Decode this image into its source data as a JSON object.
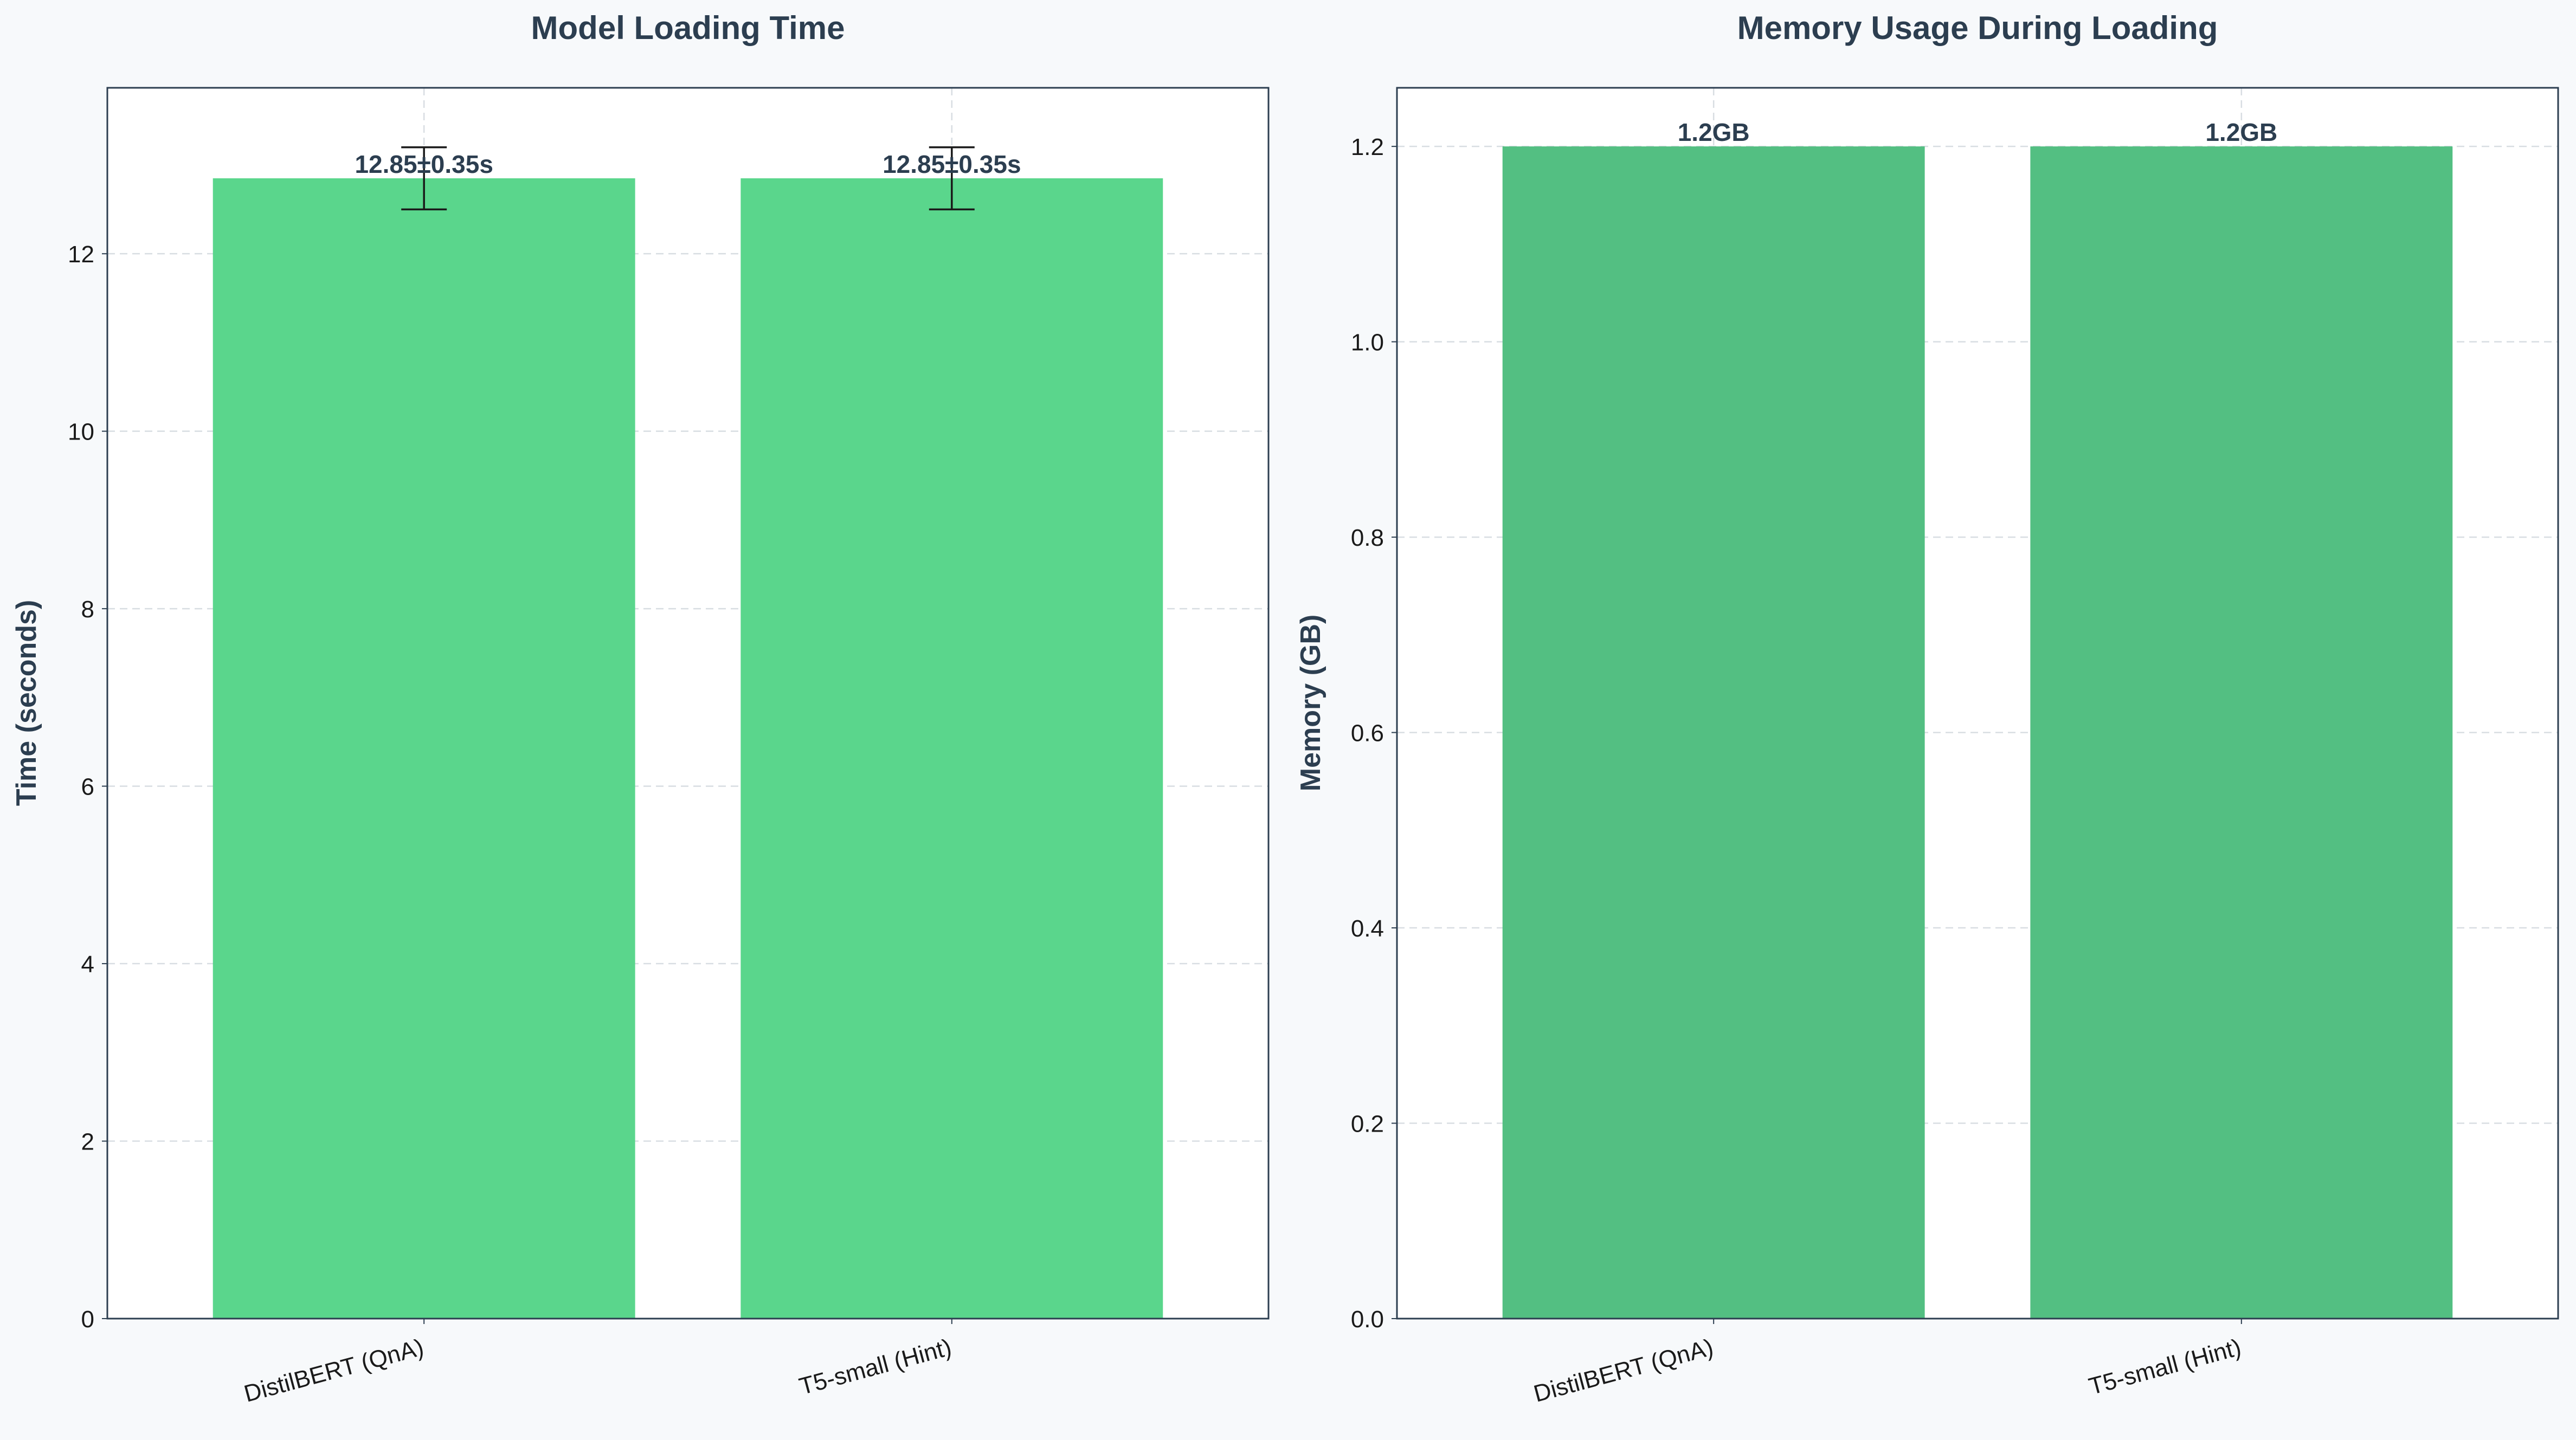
{
  "chart_data": [
    {
      "type": "bar",
      "title": "Model Loading Time",
      "xlabel": "",
      "ylabel": "Time (seconds)",
      "categories": [
        "DistilBERT (QnA)",
        "T5-small (Hint)"
      ],
      "values": [
        12.85,
        12.85
      ],
      "errors": [
        0.35,
        0.35
      ],
      "value_labels": [
        "12.85±0.35s",
        "12.85±0.35s"
      ],
      "ylim": [
        0,
        13.87
      ],
      "yticks": [
        0,
        2,
        4,
        6,
        8,
        10,
        12
      ],
      "ytick_labels": [
        "0",
        "2",
        "4",
        "6",
        "8",
        "10",
        "12"
      ],
      "grid": true,
      "colors": {
        "bar": "#5ad68c",
        "text": "#2c3e50",
        "error": "#1a1a1a",
        "frame": "#2c3e50"
      }
    },
    {
      "type": "bar",
      "title": "Memory Usage During Loading",
      "xlabel": "",
      "ylabel": "Memory (GB)",
      "categories": [
        "DistilBERT (QnA)",
        "T5-small (Hint)"
      ],
      "values": [
        1.2,
        1.2
      ],
      "value_labels": [
        "1.2GB",
        "1.2GB"
      ],
      "ylim": [
        0,
        1.26
      ],
      "yticks": [
        0.0,
        0.2,
        0.4,
        0.6,
        0.8,
        1.0,
        1.2
      ],
      "ytick_labels": [
        "0.0",
        "0.2",
        "0.4",
        "0.6",
        "0.8",
        "1.0",
        "1.2"
      ],
      "grid": true,
      "colors": {
        "bar": "#53bf82",
        "text": "#2c3e50",
        "frame": "#2c3e50"
      }
    }
  ]
}
